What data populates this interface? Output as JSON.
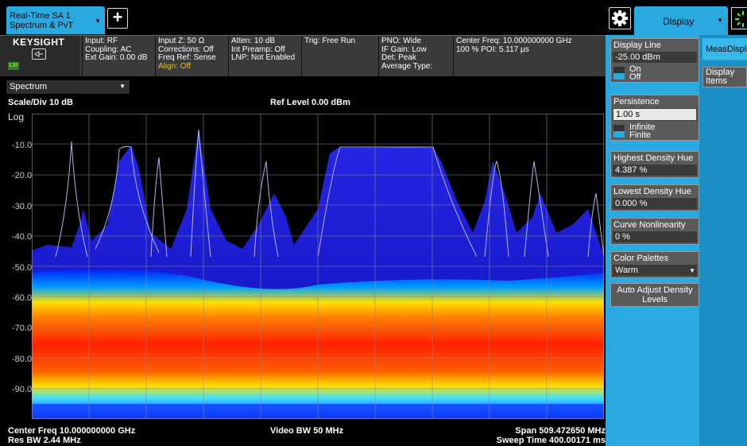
{
  "topbar": {
    "active_tab_line1": "Real-Time SA 1",
    "active_tab_line2": "Spectrum & PvT",
    "add_tab_label": "+",
    "display_tab_label": "Display"
  },
  "settings": {
    "logo": "KEYSIGHT",
    "lxi": "LXI",
    "col1": [
      "Input: RF",
      "Coupling: AC",
      "Ext Gain: 0.00 dB"
    ],
    "col2": [
      "Input Z: 50 Ω",
      "Corrections: Off",
      "Freq Ref: Sense",
      "Align: Off"
    ],
    "col3": [
      "Atten: 10 dB",
      "Int Preamp: Off",
      "LNP: Not Enabled"
    ],
    "col4": [
      "Trig: Free Run"
    ],
    "col5": [
      "PNO: Wide",
      "IF Gain: Low",
      "Det: Peak",
      "Average Type:"
    ],
    "col6": [
      "Center Freq: 10.000000000 GHz",
      "100 % POI: 5.117 µs"
    ]
  },
  "graph": {
    "view": "Spectrum",
    "scale": "Scale/Div 10 dB",
    "ref_level": "Ref Level 0.00 dBm",
    "log": "Log",
    "yticks": [
      "-10.0",
      "-20.0",
      "-30.0",
      "-40.0",
      "-50.0",
      "-60.0",
      "-70.0",
      "-80.0",
      "-90.0"
    ],
    "center_freq": "Center Freq 10.000000000 GHz",
    "res_bw": "Res BW 2.44 MHz",
    "video_bw": "Video BW 50 MHz",
    "span": "Span 509.472650 MHz",
    "sweep_time": "Sweep Time 400.00171 ms"
  },
  "panel": {
    "display_line": {
      "title": "Display Line",
      "value": "-25.00 dBm",
      "on": "On",
      "off": "Off"
    },
    "persistence": {
      "title": "Persistence",
      "value": "1.00 s",
      "infinite": "Infinite",
      "finite": "Finite"
    },
    "highest_hue": {
      "title": "Highest Density Hue",
      "value": "4.387 %"
    },
    "lowest_hue": {
      "title": "Lowest Density Hue",
      "value": "0.000 %"
    },
    "curve": {
      "title": "Curve Nonlinearity",
      "value": "0 %"
    },
    "palettes": {
      "title": "Color Palettes",
      "value": "Warm"
    },
    "auto_adjust": "Auto Adjust Density Levels",
    "meas_tab": "MeasDisplay",
    "display_items": "Display Items"
  },
  "colors": {
    "accent": "#2aa9e0",
    "trace": "#3a3aff",
    "density_hot": "#ff2000",
    "density_cool": "#0040ff"
  }
}
